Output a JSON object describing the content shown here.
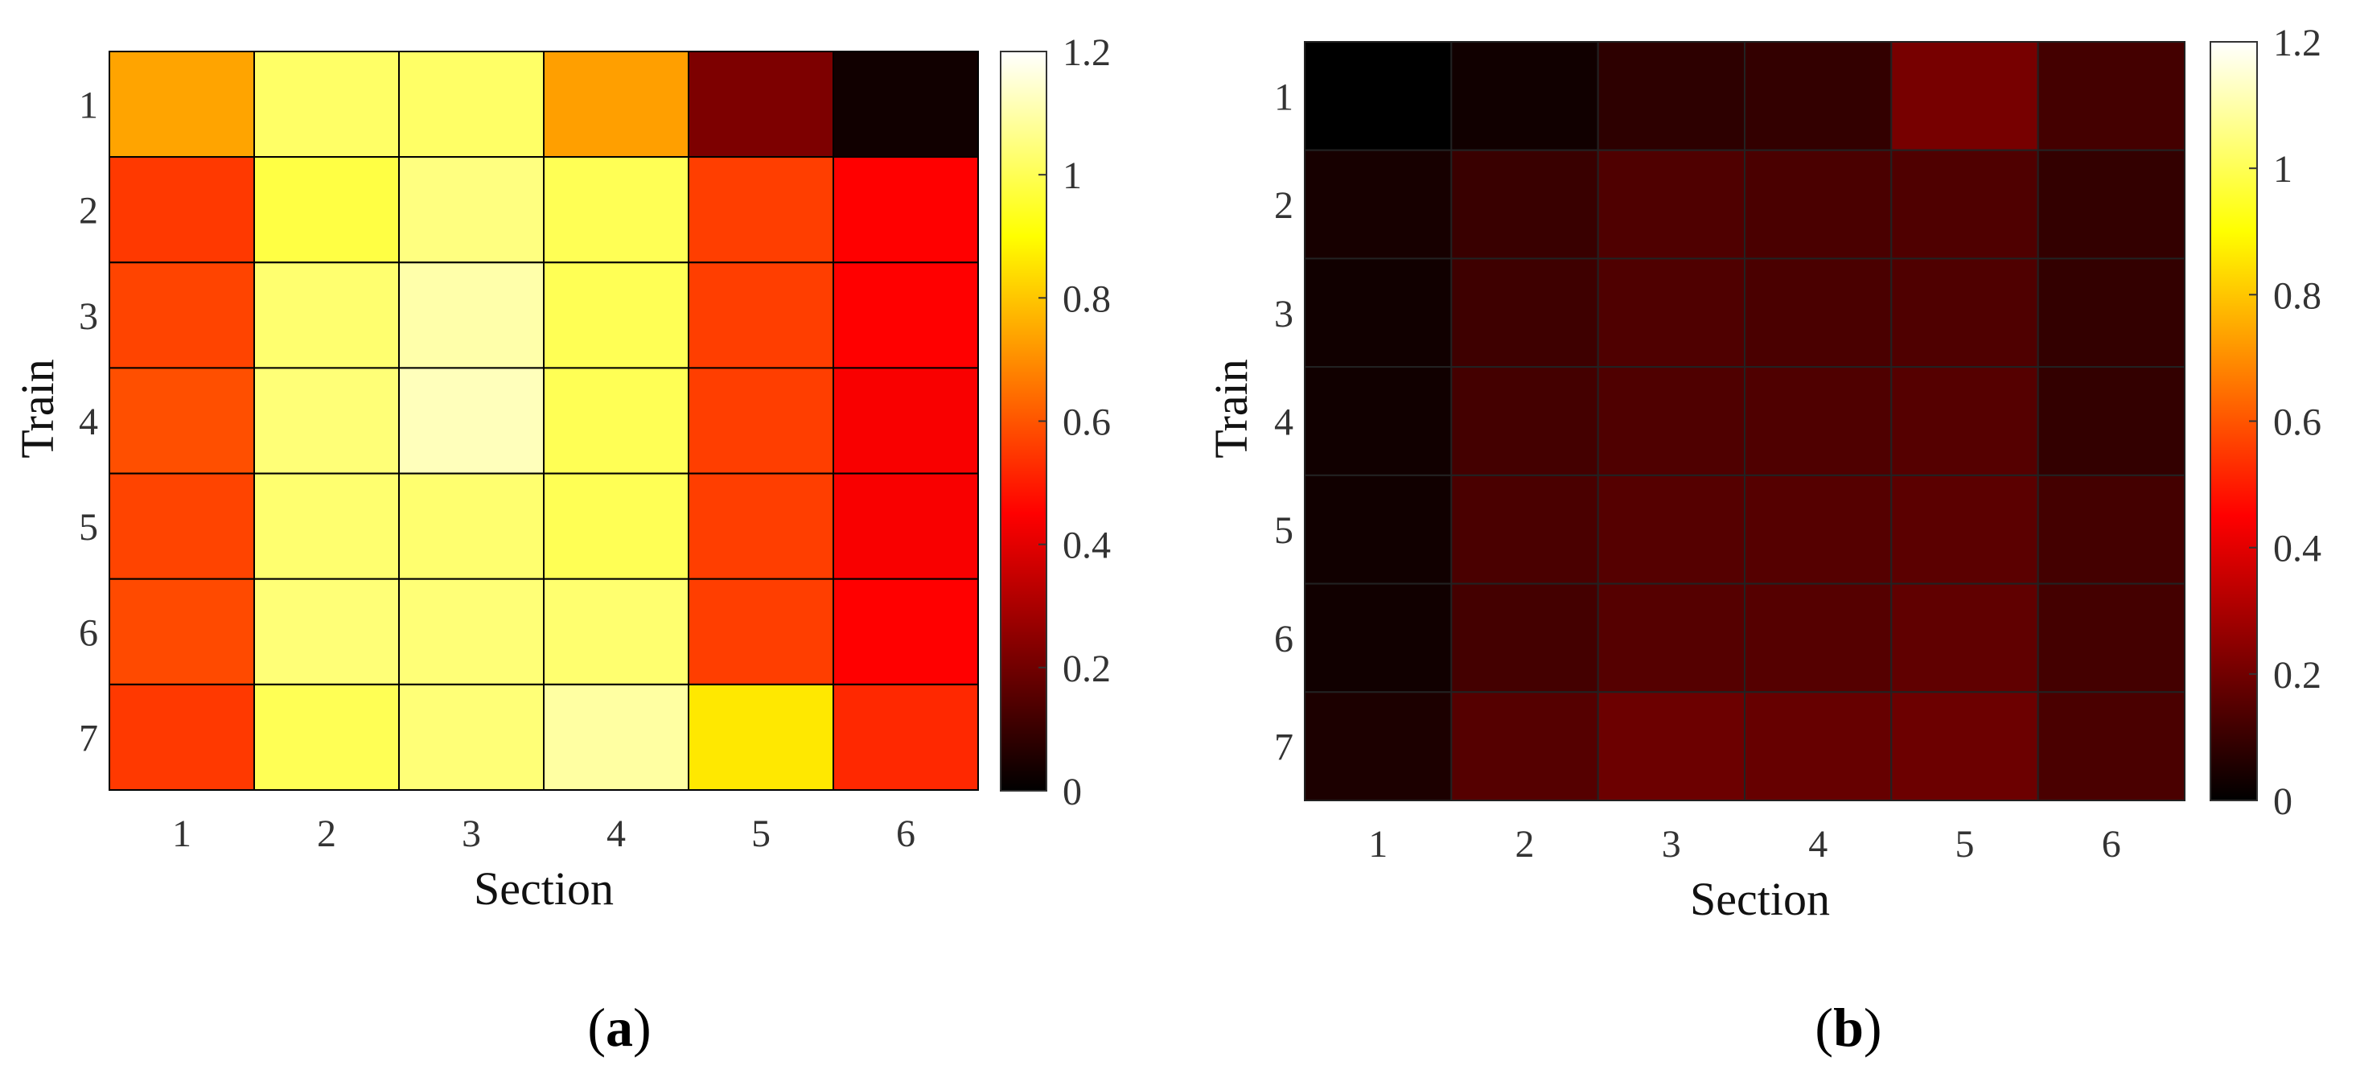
{
  "figure": {
    "panel_labels": [
      {
        "open": "(",
        "letter": "a",
        "close": ")"
      },
      {
        "open": "(",
        "letter": "b",
        "close": ")"
      }
    ]
  },
  "chart_data": [
    {
      "type": "heatmap",
      "title": "",
      "xlabel": "Section",
      "ylabel": "Train",
      "x_categories": [
        "1",
        "2",
        "3",
        "4",
        "5",
        "6"
      ],
      "y_categories": [
        "1",
        "2",
        "3",
        "4",
        "5",
        "6",
        "7"
      ],
      "colormap": "hot",
      "clim": [
        0,
        1.2
      ],
      "colorbar_ticks": [
        "0",
        "0.2",
        "0.4",
        "0.6",
        "0.8",
        "1",
        "1.2"
      ],
      "cell_border_color": "#000000",
      "values": [
        [
          0.74,
          1.02,
          1.02,
          0.73,
          0.22,
          0.03
        ],
        [
          0.55,
          0.98,
          1.05,
          1.0,
          0.56,
          0.45
        ],
        [
          0.57,
          1.03,
          1.1,
          1.0,
          0.56,
          0.45
        ],
        [
          0.59,
          1.04,
          1.12,
          1.0,
          0.56,
          0.44
        ],
        [
          0.57,
          1.03,
          1.03,
          1.0,
          0.56,
          0.44
        ],
        [
          0.58,
          1.04,
          1.04,
          1.03,
          0.56,
          0.45
        ],
        [
          0.55,
          1.0,
          1.04,
          1.09,
          0.86,
          0.52
        ]
      ]
    },
    {
      "type": "heatmap",
      "title": "",
      "xlabel": "Section",
      "ylabel": "Train",
      "x_categories": [
        "1",
        "2",
        "3",
        "4",
        "5",
        "6"
      ],
      "y_categories": [
        "1",
        "2",
        "3",
        "4",
        "5",
        "6",
        "7"
      ],
      "colormap": "hot",
      "clim": [
        0,
        1.2
      ],
      "colorbar_ticks": [
        "0",
        "0.2",
        "0.4",
        "0.6",
        "0.8",
        "1",
        "1.2"
      ],
      "cell_border_color": "#222222",
      "values": [
        [
          0.0,
          0.03,
          0.08,
          0.09,
          0.21,
          0.12
        ],
        [
          0.04,
          0.1,
          0.14,
          0.13,
          0.14,
          0.09
        ],
        [
          0.03,
          0.11,
          0.14,
          0.13,
          0.14,
          0.09
        ],
        [
          0.03,
          0.12,
          0.14,
          0.14,
          0.15,
          0.09
        ],
        [
          0.03,
          0.13,
          0.15,
          0.15,
          0.16,
          0.12
        ],
        [
          0.03,
          0.12,
          0.15,
          0.15,
          0.17,
          0.12
        ],
        [
          0.05,
          0.15,
          0.19,
          0.18,
          0.19,
          0.13
        ]
      ]
    }
  ]
}
